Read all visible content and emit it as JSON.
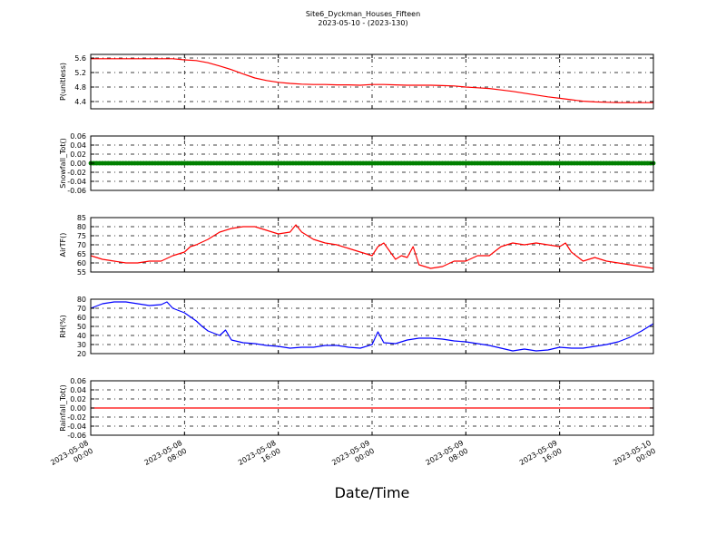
{
  "figure": {
    "title": "Site6_Dyckman_Houses_Fifteen",
    "subtitle": "2023-05-10 - (2023-130)",
    "xlabel": "Date/Time",
    "x_ticks": [
      {
        "t": 0,
        "line1": "2023-05-08",
        "line2": "00:00"
      },
      {
        "t": 8,
        "line1": "2023-05-08",
        "line2": "08:00"
      },
      {
        "t": 16,
        "line1": "2023-05-08",
        "line2": "16:00"
      },
      {
        "t": 24,
        "line1": "2023-05-09",
        "line2": "00:00"
      },
      {
        "t": 32,
        "line1": "2023-05-09",
        "line2": "08:00"
      },
      {
        "t": 40,
        "line1": "2023-05-09",
        "line2": "16:00"
      },
      {
        "t": 48,
        "line1": "2023-05-10",
        "line2": "00:00"
      }
    ],
    "x_range_hours": [
      0,
      48
    ]
  },
  "chart_data": [
    {
      "type": "line",
      "ylabel": "P(unitless)",
      "color": "#ff0000",
      "grid": true,
      "ylim": [
        4.2,
        5.7
      ],
      "yticks": [
        4.4,
        4.8,
        5.2,
        5.6
      ],
      "ytick_labels": [
        "4.4",
        "4.8",
        "5.2",
        "5.6"
      ],
      "x_hours": [
        0,
        1,
        2,
        3,
        4,
        5,
        6,
        7,
        8,
        9,
        10,
        11,
        12,
        13,
        14,
        15,
        16,
        17,
        18,
        19,
        20,
        21,
        22,
        23,
        24,
        25,
        26,
        27,
        28,
        29,
        30,
        31,
        32,
        33,
        34,
        35,
        36,
        37,
        38,
        39,
        40,
        41,
        42,
        43,
        44,
        45,
        46,
        47,
        48
      ],
      "values": [
        5.58,
        5.58,
        5.58,
        5.58,
        5.58,
        5.58,
        5.58,
        5.58,
        5.55,
        5.53,
        5.47,
        5.38,
        5.28,
        5.16,
        5.05,
        4.98,
        4.93,
        4.9,
        4.88,
        4.87,
        4.87,
        4.86,
        4.86,
        4.85,
        4.87,
        4.87,
        4.86,
        4.85,
        4.85,
        4.85,
        4.84,
        4.83,
        4.8,
        4.78,
        4.76,
        4.72,
        4.68,
        4.63,
        4.58,
        4.53,
        4.49,
        4.45,
        4.41,
        4.39,
        4.38,
        4.37,
        4.37,
        4.37,
        4.37
      ]
    },
    {
      "type": "line",
      "ylabel": "Snowfall_Tot()",
      "color": "#008000",
      "marker": "dots",
      "grid": true,
      "ylim": [
        -0.06,
        0.06
      ],
      "yticks": [
        -0.06,
        -0.04,
        -0.02,
        0.0,
        0.02,
        0.04,
        0.06
      ],
      "ytick_labels": [
        "-0.06",
        "-0.04",
        "-0.02",
        "0.00",
        "0.02",
        "0.04",
        "0.06"
      ],
      "x_range": [
        0,
        48
      ],
      "constant_value": 0.0
    },
    {
      "type": "line",
      "ylabel": "AirTF()",
      "color": "#ff0000",
      "grid": true,
      "ylim": [
        55,
        85
      ],
      "yticks": [
        55,
        60,
        65,
        70,
        75,
        80,
        85
      ],
      "ytick_labels": [
        "55",
        "60",
        "65",
        "70",
        "75",
        "80",
        "85"
      ],
      "x_hours": [
        0,
        1,
        2,
        3,
        4,
        5,
        6,
        7,
        8,
        8.5,
        9,
        10,
        11,
        12,
        13,
        14,
        15,
        16,
        17,
        17.5,
        18,
        19,
        20,
        21,
        22,
        23,
        24,
        24.5,
        25,
        26,
        26.5,
        27,
        27.5,
        28,
        29,
        30,
        31,
        32,
        33,
        34,
        35,
        36,
        37,
        38,
        39,
        40,
        40.5,
        41,
        42,
        43,
        44,
        45,
        46,
        47,
        48
      ],
      "values": [
        64,
        62,
        61,
        60,
        60,
        61,
        61,
        64,
        66,
        69,
        70,
        73,
        77,
        79,
        80,
        80,
        78,
        76,
        77,
        81,
        77,
        73,
        71,
        70,
        68,
        66,
        64,
        69,
        71,
        62,
        64,
        63,
        69,
        59,
        57,
        58,
        61,
        61,
        64,
        64,
        69,
        71,
        70,
        71,
        70,
        69,
        71,
        66,
        61,
        63,
        61,
        60,
        59,
        58,
        57
      ]
    },
    {
      "type": "line",
      "ylabel": "RH(%)",
      "color": "#0000ff",
      "grid": true,
      "ylim": [
        20,
        80
      ],
      "yticks": [
        20,
        30,
        40,
        50,
        60,
        70,
        80
      ],
      "ytick_labels": [
        "20",
        "30",
        "40",
        "50",
        "60",
        "70",
        "80"
      ],
      "x_hours": [
        0,
        1,
        2,
        3,
        4,
        5,
        6,
        6.5,
        7,
        8,
        9,
        9.5,
        10,
        11,
        11.5,
        12,
        13,
        14,
        15,
        16,
        17,
        18,
        19,
        20,
        21,
        22,
        23,
        24,
        24.5,
        25,
        26,
        27,
        28,
        29,
        30,
        31,
        32,
        33,
        34,
        35,
        36,
        37,
        38,
        39,
        40,
        41,
        42,
        43,
        44,
        45,
        46,
        47,
        48
      ],
      "values": [
        70,
        75,
        77,
        77,
        75,
        73,
        74,
        77,
        70,
        65,
        56,
        50,
        45,
        40,
        46,
        35,
        32,
        31,
        29,
        28,
        26,
        27,
        27,
        29,
        29,
        27,
        26,
        30,
        44,
        32,
        31,
        35,
        37,
        37,
        36,
        34,
        33,
        31,
        29,
        26,
        23,
        25,
        23,
        24,
        27,
        26,
        26,
        28,
        30,
        33,
        38,
        45,
        53
      ]
    },
    {
      "type": "line",
      "ylabel": "Rainfall_Tot()",
      "color": "#ff0000",
      "grid": true,
      "ylim": [
        -0.06,
        0.06
      ],
      "yticks": [
        -0.06,
        -0.04,
        -0.02,
        0.0,
        0.02,
        0.04,
        0.06
      ],
      "ytick_labels": [
        "-0.06",
        "-0.04",
        "-0.02",
        "0.00",
        "0.02",
        "0.04",
        "0.06"
      ],
      "x_range": [
        0,
        48
      ],
      "constant_value": 0.0
    }
  ]
}
